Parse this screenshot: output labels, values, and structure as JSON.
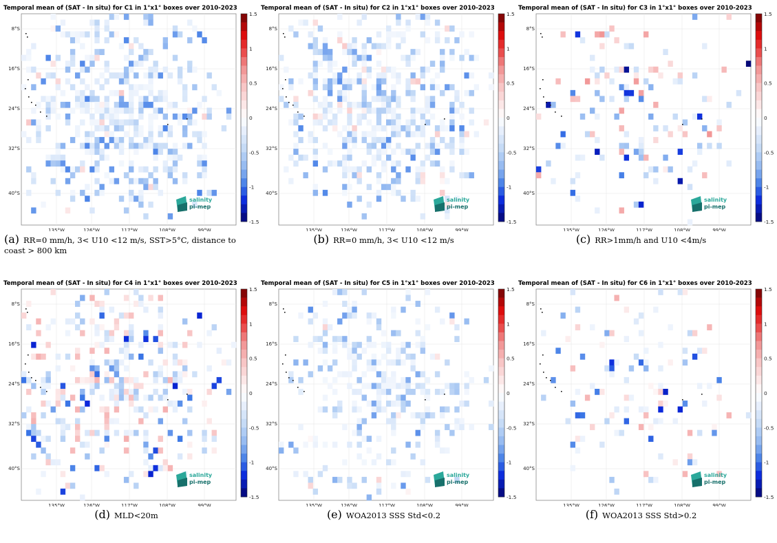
{
  "chart_data": [
    {
      "type": "heatmap",
      "title": "Temporal mean of (SAT - In situ) for C1 in 1°x1° boxes over 2010-2023",
      "caption_letter": "(a)",
      "caption": "RR=0 mm/h, 3< U10 <12 m/s, SST>5°C, distance to coast > 800 km",
      "x_ticks": [
        "135°W",
        "126°W",
        "117°W",
        "108°W",
        "99°W"
      ],
      "y_ticks": [
        "8°S",
        "16°S",
        "24°S",
        "32°S",
        "40°S"
      ],
      "colorbar_ticks": [
        "1.5",
        "1",
        "0.5",
        "0",
        "-0.5",
        "-1",
        "-1.5"
      ],
      "colorbar_range": [
        -1.5,
        1.5
      ],
      "colormap": "blue-white-red",
      "logo": [
        "salinity",
        "pi-mep"
      ],
      "seed": 11,
      "coverage": 0.6,
      "pos_prob": 0.04,
      "amp": 0.6
    },
    {
      "type": "heatmap",
      "title": "Temporal mean of (SAT - In situ) for C2 in 1°x1° boxes over 2010-2023",
      "caption_letter": "(b)",
      "caption": "RR=0 mm/h, 3< U10 <12 m/s",
      "x_ticks": [
        "135°W",
        "126°W",
        "117°W",
        "108°W",
        "99°W"
      ],
      "y_ticks": [
        "8°S",
        "16°S",
        "24°S",
        "32°S",
        "40°S"
      ],
      "colorbar_ticks": [
        "1.5",
        "1",
        "0.5",
        "0",
        "-0.5",
        "-1",
        "-1.5"
      ],
      "colorbar_range": [
        -1.5,
        1.5
      ],
      "colormap": "blue-white-red",
      "logo": [
        "salinity",
        "pi-mep"
      ],
      "seed": 23,
      "coverage": 0.6,
      "pos_prob": 0.05,
      "amp": 0.6
    },
    {
      "type": "heatmap",
      "title": "Temporal mean of (SAT - In situ) for C3 in 1°x1° boxes over 2010-2023",
      "caption_letter": "(c)",
      "caption": "RR>1mm/h and U10 <4m/s",
      "x_ticks": [
        "135°W",
        "126°W",
        "117°W",
        "108°W",
        "99°W"
      ],
      "y_ticks": [
        "8°S",
        "16°S",
        "24°S",
        "32°S",
        "40°S"
      ],
      "colorbar_ticks": [
        "1.5",
        "1",
        "0.5",
        "0",
        "-0.5",
        "-1",
        "-1.5"
      ],
      "colorbar_range": [
        -1.5,
        1.5
      ],
      "colormap": "blue-white-red",
      "logo": [
        "salinity",
        "pi-mep"
      ],
      "seed": 37,
      "coverage": 0.17,
      "pos_prob": 0.35,
      "amp": 1.0
    },
    {
      "type": "heatmap",
      "title": "Temporal mean of (SAT - In situ) for C4 in 1°x1° boxes over 2010-2023",
      "caption_letter": "(d)",
      "caption": "MLD<20m",
      "x_ticks": [
        "135°W",
        "126°W",
        "117°W",
        "108°W",
        "99°W"
      ],
      "y_ticks": [
        "8°S",
        "16°S",
        "24°S",
        "32°S",
        "40°S"
      ],
      "colorbar_ticks": [
        "1.5",
        "1",
        "0.5",
        "0",
        "-0.5",
        "-1",
        "-1.5"
      ],
      "colorbar_range": [
        -1.5,
        1.5
      ],
      "colormap": "blue-white-red",
      "logo": [
        "salinity",
        "pi-mep"
      ],
      "seed": 41,
      "coverage": 0.45,
      "pos_prob": 0.35,
      "amp": 0.8
    },
    {
      "type": "heatmap",
      "title": "Temporal mean of (SAT - In situ) for C5 in 1°x1° boxes over 2010-2023",
      "caption_letter": "(e)",
      "caption": "WOA2013 SSS Std<0.2",
      "x_ticks": [
        "135°W",
        "126°W",
        "117°W",
        "108°W",
        "99°W"
      ],
      "y_ticks": [
        "8°S",
        "16°S",
        "24°S",
        "32°S",
        "40°S"
      ],
      "colorbar_ticks": [
        "1.5",
        "1",
        "0.5",
        "0",
        "-0.5",
        "-1",
        "-1.5"
      ],
      "colorbar_range": [
        -1.5,
        1.5
      ],
      "colormap": "blue-white-red",
      "logo": [
        "salinity",
        "pi-mep"
      ],
      "seed": 53,
      "coverage": 0.42,
      "pos_prob": 0.03,
      "amp": 0.6
    },
    {
      "type": "heatmap",
      "title": "Temporal mean of (SAT - In situ) for C6 in 1°x1° boxes over 2010-2023",
      "caption_letter": "(f)",
      "caption": "WOA2013 SSS Std>0.2",
      "x_ticks": [
        "135°W",
        "126°W",
        "117°W",
        "108°W",
        "99°W"
      ],
      "y_ticks": [
        "8°S",
        "16°S",
        "24°S",
        "32°S",
        "40°S"
      ],
      "colorbar_ticks": [
        "1.5",
        "1",
        "0.5",
        "0",
        "-0.5",
        "-1",
        "-1.5"
      ],
      "colorbar_range": [
        -1.5,
        1.5
      ],
      "colormap": "blue-white-red",
      "logo": [
        "salinity",
        "pi-mep"
      ],
      "seed": 67,
      "coverage": 0.13,
      "pos_prob": 0.3,
      "amp": 0.8
    }
  ]
}
